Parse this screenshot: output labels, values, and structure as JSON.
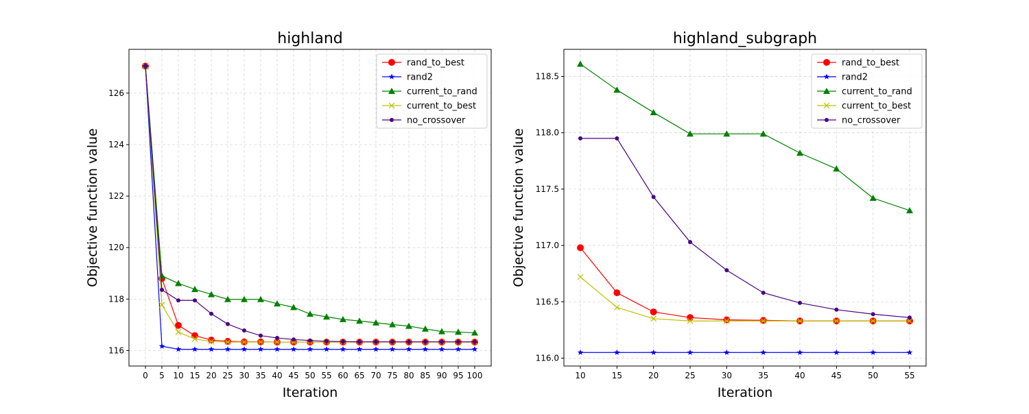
{
  "chart_data": [
    {
      "type": "line",
      "title": "highland",
      "xlabel": "Iteration",
      "ylabel": "Objective function value",
      "xlim": [
        -5,
        105
      ],
      "ylim": [
        115.4,
        127.7
      ],
      "xticks": [
        0,
        5,
        10,
        15,
        20,
        25,
        30,
        35,
        40,
        45,
        50,
        55,
        60,
        65,
        70,
        75,
        80,
        85,
        90,
        95,
        100
      ],
      "yticks": [
        116,
        118,
        120,
        122,
        124,
        126
      ],
      "grid": true,
      "legend_position": "top-right",
      "x": [
        0,
        5,
        10,
        15,
        20,
        25,
        30,
        35,
        40,
        45,
        50,
        55,
        60,
        65,
        70,
        75,
        80,
        85,
        90,
        95,
        100
      ],
      "series": [
        {
          "name": "rand_to_best",
          "color": "#ff0000",
          "marker": "circle",
          "values": [
            127.05,
            118.8,
            116.98,
            116.58,
            116.41,
            116.36,
            116.34,
            116.34,
            116.33,
            116.33,
            116.33,
            116.33,
            116.33,
            116.33,
            116.33,
            116.33,
            116.33,
            116.33,
            116.33,
            116.33,
            116.33
          ]
        },
        {
          "name": "rand2",
          "color": "#0000ff",
          "marker": "star",
          "values": [
            127.05,
            116.17,
            116.05,
            116.05,
            116.05,
            116.05,
            116.05,
            116.05,
            116.05,
            116.05,
            116.05,
            116.05,
            116.05,
            116.05,
            116.05,
            116.05,
            116.05,
            116.05,
            116.05,
            116.05,
            116.05
          ]
        },
        {
          "name": "current_to_rand",
          "color": "#008000",
          "marker": "triangle",
          "values": [
            127.05,
            118.9,
            118.61,
            118.38,
            118.18,
            117.99,
            117.99,
            117.99,
            117.82,
            117.68,
            117.42,
            117.31,
            117.21,
            117.15,
            117.08,
            117.01,
            116.95,
            116.84,
            116.74,
            116.72,
            116.69
          ]
        },
        {
          "name": "current_to_best",
          "color": "#bfbf00",
          "marker": "x",
          "values": [
            127.05,
            117.77,
            116.72,
            116.45,
            116.35,
            116.33,
            116.33,
            116.33,
            116.33,
            116.33,
            116.33,
            116.33,
            116.33,
            116.33,
            116.33,
            116.33,
            116.33,
            116.33,
            116.33,
            116.33,
            116.33
          ]
        },
        {
          "name": "no_crossover",
          "color": "#4b0082",
          "marker": "dot",
          "values": [
            127.05,
            118.36,
            117.95,
            117.95,
            117.43,
            117.03,
            116.78,
            116.58,
            116.49,
            116.43,
            116.39,
            116.36,
            116.35,
            116.34,
            116.34,
            116.34,
            116.34,
            116.34,
            116.34,
            116.34,
            116.34
          ]
        }
      ]
    },
    {
      "type": "line",
      "title": "highland_subgraph",
      "xlabel": "Iteration",
      "ylabel": "Objective function value",
      "xlim": [
        7.75,
        57.25
      ],
      "ylim": [
        115.93,
        118.74
      ],
      "xticks": [
        10,
        15,
        20,
        25,
        30,
        35,
        40,
        45,
        50,
        55
      ],
      "yticks": [
        116.0,
        116.5,
        117.0,
        117.5,
        118.0,
        118.5
      ],
      "ytick_labels": [
        "116.0",
        "116.5",
        "117.0",
        "117.5",
        "118.0",
        "118.5"
      ],
      "grid": true,
      "legend_position": "top-right",
      "x": [
        10,
        15,
        20,
        25,
        30,
        35,
        40,
        45,
        50,
        55
      ],
      "series": [
        {
          "name": "rand_to_best",
          "color": "#ff0000",
          "marker": "circle",
          "values": [
            116.98,
            116.58,
            116.41,
            116.36,
            116.34,
            116.335,
            116.33,
            116.33,
            116.33,
            116.33
          ]
        },
        {
          "name": "rand2",
          "color": "#0000ff",
          "marker": "star",
          "values": [
            116.05,
            116.05,
            116.05,
            116.05,
            116.05,
            116.05,
            116.05,
            116.05,
            116.05,
            116.05
          ]
        },
        {
          "name": "current_to_rand",
          "color": "#008000",
          "marker": "triangle",
          "values": [
            118.61,
            118.38,
            118.18,
            117.99,
            117.99,
            117.99,
            117.82,
            117.68,
            117.42,
            117.31
          ]
        },
        {
          "name": "current_to_best",
          "color": "#bfbf00",
          "marker": "x",
          "values": [
            116.72,
            116.45,
            116.35,
            116.33,
            116.33,
            116.33,
            116.33,
            116.33,
            116.33,
            116.33
          ]
        },
        {
          "name": "no_crossover",
          "color": "#4b0082",
          "marker": "dot",
          "values": [
            117.95,
            117.95,
            117.43,
            117.03,
            116.78,
            116.58,
            116.49,
            116.43,
            116.39,
            116.36
          ]
        }
      ]
    }
  ]
}
